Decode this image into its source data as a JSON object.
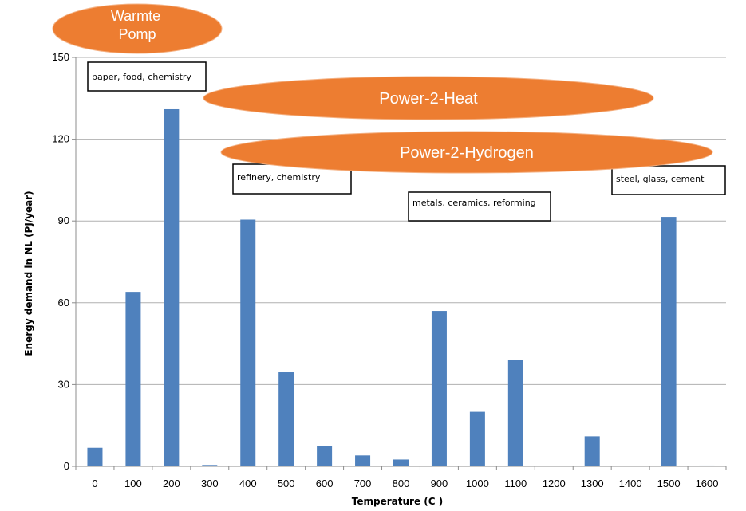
{
  "chart_data": {
    "type": "bar",
    "title": "",
    "xlabel": "Temperature (C )",
    "ylabel": "Energy demand  in NL (PJ/year)",
    "ylim": [
      0,
      150
    ],
    "yticks": [
      0,
      30,
      60,
      90,
      120,
      150
    ],
    "grid": true,
    "bar_color": "#4f81bd",
    "categories": [
      "0",
      "100",
      "200",
      "300",
      "400",
      "500",
      "600",
      "700",
      "800",
      "900",
      "1000",
      "1100",
      "1200",
      "1300",
      "1400",
      "1500",
      "1600"
    ],
    "values": [
      6.8,
      64,
      131,
      0.5,
      90.5,
      34.5,
      7.5,
      4,
      2.5,
      57,
      20,
      39,
      0,
      11,
      0,
      91.5,
      0.3
    ],
    "annotations": [
      {
        "text": "paper, food, chemistry"
      },
      {
        "text": "refinery, chemistry"
      },
      {
        "text": "metals, ceramics, reforming"
      },
      {
        "text": "steel, glass, cement"
      }
    ],
    "overlays": [
      {
        "line1": "Warmte",
        "line2": "Pomp"
      },
      {
        "line1": "Power-2-Heat"
      },
      {
        "line1": "Power-2-Hydrogen"
      }
    ],
    "overlay_color": "#ed7d31"
  }
}
